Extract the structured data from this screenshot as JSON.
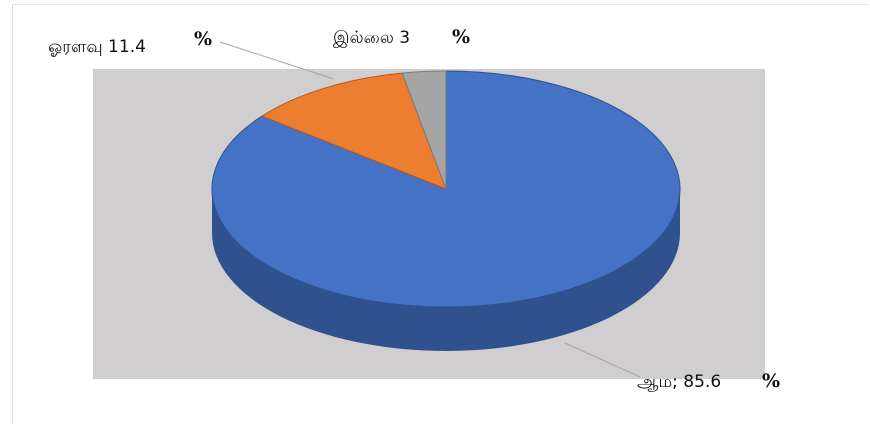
{
  "chart_data": {
    "type": "pie",
    "style": "3d",
    "slices": [
      {
        "label": "ஆம",
        "value": 85.6,
        "label_text": "ஆம; 85.6",
        "pct": "%",
        "color": "#4472C4",
        "side_color": "#2F528F"
      },
      {
        "label": "ஓரளவு",
        "value": 11.4,
        "label_text": "ஓரளவு 11.4",
        "pct": "%",
        "color": "#ED7D31",
        "side_color": "#B05A1F"
      },
      {
        "label": "இல்லை",
        "value": 3,
        "label_text": "இல்லை  3",
        "pct": "%",
        "color": "#A5A5A5",
        "side_color": "#7B7B7B"
      }
    ],
    "legend": "none",
    "grid": false,
    "plot_area_color": "#D0CECE"
  }
}
